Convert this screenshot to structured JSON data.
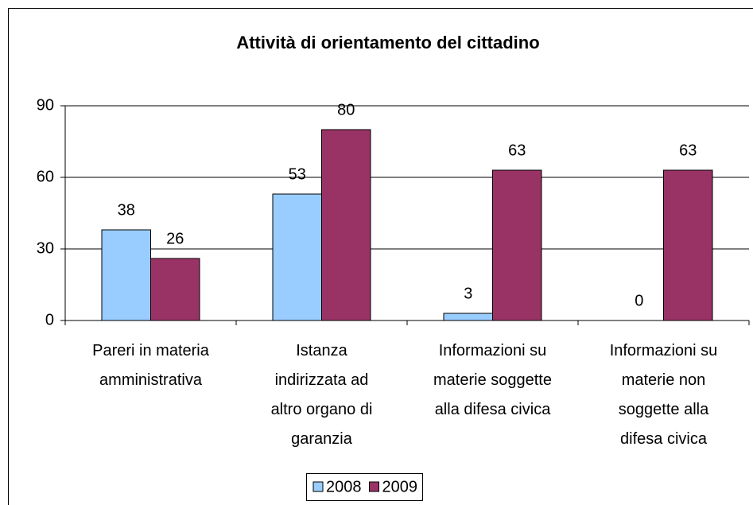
{
  "chart_data": {
    "type": "bar",
    "title": "Attività di orientamento del cittadino",
    "categories": [
      "Pareri in materia amministrativa",
      "Istanza indirizzata ad altro organo di garanzia",
      "Informazioni su materie soggette alla difesa civica",
      "Informazioni su materie non soggette alla difesa civica"
    ],
    "series": [
      {
        "name": "2008",
        "color": "#99ccff",
        "values": [
          38,
          53,
          3,
          0
        ]
      },
      {
        "name": "2009",
        "color": "#993366",
        "values": [
          26,
          80,
          63,
          63
        ]
      }
    ],
    "ylim": [
      0,
      90
    ],
    "yticks": [
      0,
      30,
      60,
      90
    ],
    "grid": true,
    "legend": "bottom"
  }
}
